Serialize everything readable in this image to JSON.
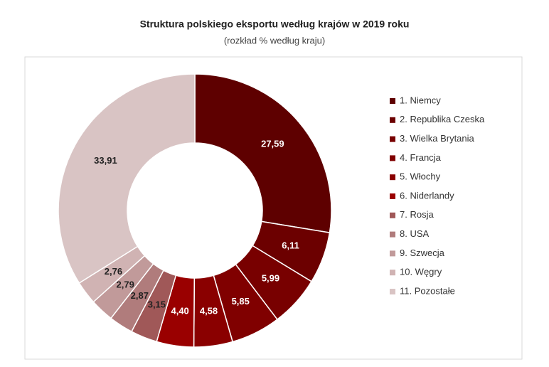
{
  "chart_data": {
    "type": "donut",
    "title": "Struktura polskiego eksportu według krajów w 2019 roku",
    "subtitle": "(rozkład % według kraju)",
    "categories": [
      "1. Niemcy",
      "2. Republika Czeska",
      "3. Wielka Brytania",
      "4. Francja",
      "5. Włochy",
      "6. Niderlandy",
      "7. Rosja",
      "8. USA",
      "9. Szwecja",
      "10. Węgry",
      "11. Pozostałe"
    ],
    "values": [
      27.59,
      6.11,
      5.99,
      5.85,
      4.58,
      4.4,
      3.15,
      2.87,
      2.79,
      2.76,
      33.91
    ],
    "value_labels": [
      "27,59",
      "6,11",
      "5,99",
      "5,85",
      "4,58",
      "4,40",
      "3,15",
      "2,87",
      "2,79",
      "2,76",
      "33,91"
    ],
    "colors": [
      "#5e0000",
      "#6c0000",
      "#780000",
      "#800000",
      "#8a0000",
      "#9a0000",
      "#a05858",
      "#b07c7c",
      "#c19a9a",
      "#d0b3b3",
      "#d9c4c4"
    ],
    "legend": "right"
  }
}
